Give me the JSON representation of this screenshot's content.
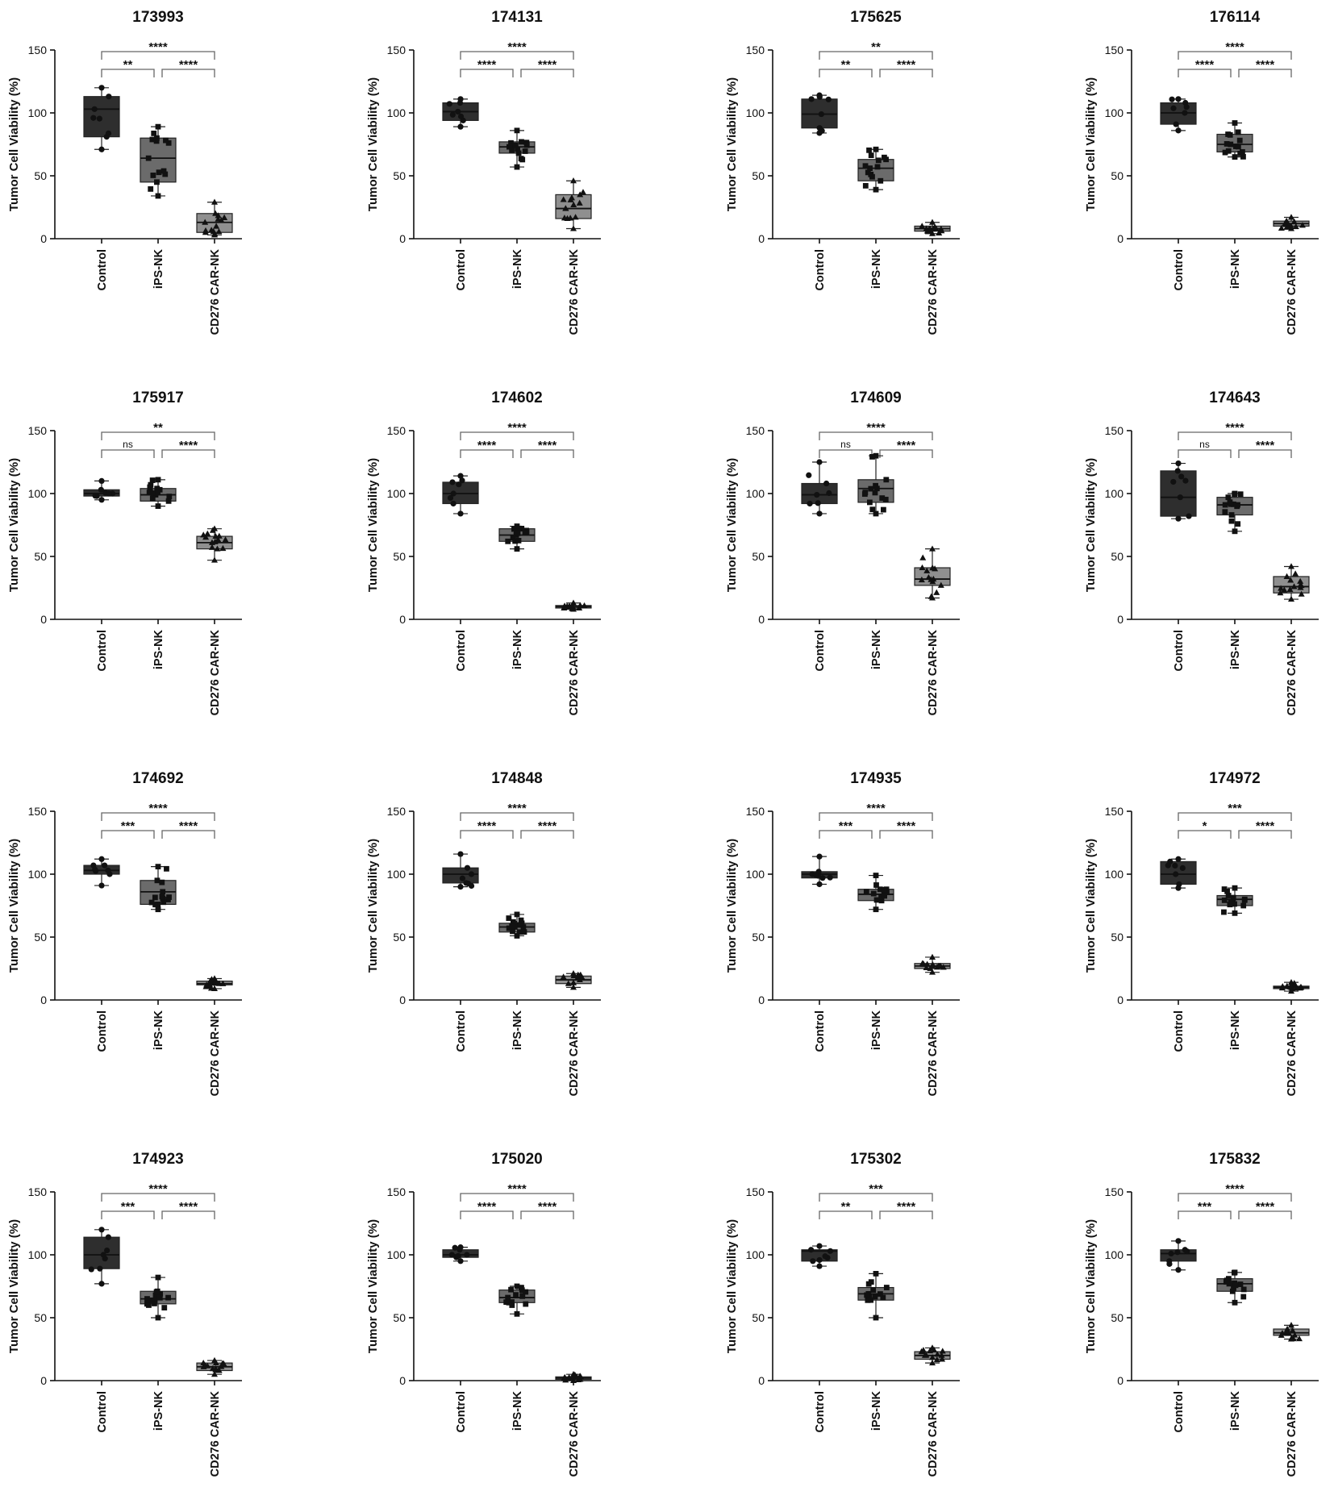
{
  "figure": {
    "categories": [
      "Control",
      "iPS-NK",
      "CD276 CAR-NK"
    ],
    "ylabel": "Tumor Cell Viability (%)",
    "yticks": [
      0,
      50,
      100,
      150
    ],
    "box_colors": [
      "#2e2e2e",
      "#6b6b6b",
      "#8f8f8f"
    ]
  },
  "chart_data": [
    {
      "type": "box",
      "title": "173993",
      "categories": [
        "Control",
        "iPS-NK",
        "CD276 CAR-NK"
      ],
      "ylabel": "Tumor Cell Viability (%)",
      "ylim": [
        0,
        150
      ],
      "boxes": [
        {
          "min": 71,
          "q1": 81,
          "median": 103,
          "q3": 113,
          "max": 120
        },
        {
          "min": 34,
          "q1": 45,
          "median": 64,
          "q3": 80,
          "max": 89
        },
        {
          "min": 3,
          "q1": 5,
          "median": 13,
          "q3": 20,
          "max": 29
        }
      ],
      "comparisons": [
        {
          "from": "Control",
          "to": "iPS-NK",
          "label": "**"
        },
        {
          "from": "iPS-NK",
          "to": "CD276 CAR-NK",
          "label": "****"
        },
        {
          "from": "Control",
          "to": "CD276 CAR-NK",
          "label": "****"
        }
      ]
    },
    {
      "type": "box",
      "title": "174131",
      "categories": [
        "Control",
        "iPS-NK",
        "CD276 CAR-NK"
      ],
      "ylabel": "Tumor Cell Viability (%)",
      "ylim": [
        0,
        150
      ],
      "boxes": [
        {
          "min": 89,
          "q1": 94,
          "median": 101,
          "q3": 108,
          "max": 111
        },
        {
          "min": 57,
          "q1": 68,
          "median": 73,
          "q3": 77,
          "max": 86
        },
        {
          "min": 8,
          "q1": 16,
          "median": 24,
          "q3": 35,
          "max": 46
        }
      ],
      "comparisons": [
        {
          "from": "Control",
          "to": "iPS-NK",
          "label": "****"
        },
        {
          "from": "iPS-NK",
          "to": "CD276 CAR-NK",
          "label": "****"
        },
        {
          "from": "Control",
          "to": "CD276 CAR-NK",
          "label": "****"
        }
      ]
    },
    {
      "type": "box",
      "title": "175625",
      "categories": [
        "Control",
        "iPS-NK",
        "CD276 CAR-NK"
      ],
      "ylabel": "Tumor Cell Viability (%)",
      "ylim": [
        0,
        150
      ],
      "boxes": [
        {
          "min": 84,
          "q1": 88,
          "median": 99,
          "q3": 111,
          "max": 114
        },
        {
          "min": 39,
          "q1": 46,
          "median": 56,
          "q3": 63,
          "max": 71
        },
        {
          "min": 4,
          "q1": 6,
          "median": 8,
          "q3": 10,
          "max": 13
        }
      ],
      "comparisons": [
        {
          "from": "Control",
          "to": "iPS-NK",
          "label": "**"
        },
        {
          "from": "iPS-NK",
          "to": "CD276 CAR-NK",
          "label": "****"
        },
        {
          "from": "Control",
          "to": "CD276 CAR-NK",
          "label": "**"
        }
      ]
    },
    {
      "type": "box",
      "title": "176114",
      "categories": [
        "Control",
        "iPS-NK",
        "CD276 CAR-NK"
      ],
      "ylabel": "Tumor Cell Viability (%)",
      "ylim": [
        0,
        150
      ],
      "boxes": [
        {
          "min": 86,
          "q1": 91,
          "median": 100,
          "q3": 108,
          "max": 111
        },
        {
          "min": 65,
          "q1": 69,
          "median": 75,
          "q3": 83,
          "max": 92
        },
        {
          "min": 8,
          "q1": 10,
          "median": 12,
          "q3": 14,
          "max": 17
        }
      ],
      "comparisons": [
        {
          "from": "Control",
          "to": "iPS-NK",
          "label": "****"
        },
        {
          "from": "iPS-NK",
          "to": "CD276 CAR-NK",
          "label": "****"
        },
        {
          "from": "Control",
          "to": "CD276 CAR-NK",
          "label": "****"
        }
      ]
    },
    {
      "type": "box",
      "title": "175917",
      "categories": [
        "Control",
        "iPS-NK",
        "CD276 CAR-NK"
      ],
      "ylabel": "Tumor Cell Viability (%)",
      "ylim": [
        0,
        150
      ],
      "boxes": [
        {
          "min": 95,
          "q1": 98,
          "median": 100,
          "q3": 103,
          "max": 110
        },
        {
          "min": 90,
          "q1": 94,
          "median": 99,
          "q3": 104,
          "max": 111
        },
        {
          "min": 47,
          "q1": 56,
          "median": 61,
          "q3": 66,
          "max": 72
        }
      ],
      "comparisons": [
        {
          "from": "Control",
          "to": "iPS-NK",
          "label": "ns"
        },
        {
          "from": "iPS-NK",
          "to": "CD276 CAR-NK",
          "label": "****"
        },
        {
          "from": "Control",
          "to": "CD276 CAR-NK",
          "label": "**"
        }
      ]
    },
    {
      "type": "box",
      "title": "174602",
      "categories": [
        "Control",
        "iPS-NK",
        "CD276 CAR-NK"
      ],
      "ylabel": "Tumor Cell Viability (%)",
      "ylim": [
        0,
        150
      ],
      "boxes": [
        {
          "min": 84,
          "q1": 92,
          "median": 100,
          "q3": 109,
          "max": 114
        },
        {
          "min": 56,
          "q1": 62,
          "median": 67,
          "q3": 72,
          "max": 74
        },
        {
          "min": 8,
          "q1": 9,
          "median": 10,
          "q3": 11,
          "max": 13
        }
      ],
      "comparisons": [
        {
          "from": "Control",
          "to": "iPS-NK",
          "label": "****"
        },
        {
          "from": "iPS-NK",
          "to": "CD276 CAR-NK",
          "label": "****"
        },
        {
          "from": "Control",
          "to": "CD276 CAR-NK",
          "label": "****"
        }
      ]
    },
    {
      "type": "box",
      "title": "174609",
      "categories": [
        "Control",
        "iPS-NK",
        "CD276 CAR-NK"
      ],
      "ylabel": "Tumor Cell Viability (%)",
      "ylim": [
        0,
        150
      ],
      "boxes": [
        {
          "min": 84,
          "q1": 92,
          "median": 99,
          "q3": 108,
          "max": 125
        },
        {
          "min": 84,
          "q1": 93,
          "median": 104,
          "q3": 111,
          "max": 130
        },
        {
          "min": 17,
          "q1": 27,
          "median": 32,
          "q3": 41,
          "max": 56
        }
      ],
      "comparisons": [
        {
          "from": "Control",
          "to": "iPS-NK",
          "label": "ns"
        },
        {
          "from": "iPS-NK",
          "to": "CD276 CAR-NK",
          "label": "****"
        },
        {
          "from": "Control",
          "to": "CD276 CAR-NK",
          "label": "****"
        }
      ]
    },
    {
      "type": "box",
      "title": "174643",
      "categories": [
        "Control",
        "iPS-NK",
        "CD276 CAR-NK"
      ],
      "ylabel": "Tumor Cell Viability (%)",
      "ylim": [
        0,
        150
      ],
      "boxes": [
        {
          "min": 80,
          "q1": 82,
          "median": 97,
          "q3": 118,
          "max": 124
        },
        {
          "min": 70,
          "q1": 83,
          "median": 91,
          "q3": 97,
          "max": 100
        },
        {
          "min": 16,
          "q1": 21,
          "median": 26,
          "q3": 34,
          "max": 42
        }
      ],
      "comparisons": [
        {
          "from": "Control",
          "to": "iPS-NK",
          "label": "ns"
        },
        {
          "from": "iPS-NK",
          "to": "CD276 CAR-NK",
          "label": "****"
        },
        {
          "from": "Control",
          "to": "CD276 CAR-NK",
          "label": "****"
        }
      ]
    },
    {
      "type": "box",
      "title": "174692",
      "categories": [
        "Control",
        "iPS-NK",
        "CD276 CAR-NK"
      ],
      "ylabel": "Tumor Cell Viability (%)",
      "ylim": [
        0,
        150
      ],
      "boxes": [
        {
          "min": 91,
          "q1": 100,
          "median": 103,
          "q3": 107,
          "max": 112
        },
        {
          "min": 72,
          "q1": 76,
          "median": 86,
          "q3": 95,
          "max": 106
        },
        {
          "min": 9,
          "q1": 12,
          "median": 13,
          "q3": 15,
          "max": 17
        }
      ],
      "comparisons": [
        {
          "from": "Control",
          "to": "iPS-NK",
          "label": "***"
        },
        {
          "from": "iPS-NK",
          "to": "CD276 CAR-NK",
          "label": "****"
        },
        {
          "from": "Control",
          "to": "CD276 CAR-NK",
          "label": "****"
        }
      ]
    },
    {
      "type": "box",
      "title": "174848",
      "categories": [
        "Control",
        "iPS-NK",
        "CD276 CAR-NK"
      ],
      "ylabel": "Tumor Cell Viability (%)",
      "ylim": [
        0,
        150
      ],
      "boxes": [
        {
          "min": 90,
          "q1": 93,
          "median": 100,
          "q3": 105,
          "max": 116
        },
        {
          "min": 51,
          "q1": 54,
          "median": 58,
          "q3": 61,
          "max": 68
        },
        {
          "min": 10,
          "q1": 13,
          "median": 16,
          "q3": 19,
          "max": 21
        }
      ],
      "comparisons": [
        {
          "from": "Control",
          "to": "iPS-NK",
          "label": "****"
        },
        {
          "from": "iPS-NK",
          "to": "CD276 CAR-NK",
          "label": "****"
        },
        {
          "from": "Control",
          "to": "CD276 CAR-NK",
          "label": "****"
        }
      ]
    },
    {
      "type": "box",
      "title": "174935",
      "categories": [
        "Control",
        "iPS-NK",
        "CD276 CAR-NK"
      ],
      "ylabel": "Tumor Cell Viability (%)",
      "ylim": [
        0,
        150
      ],
      "boxes": [
        {
          "min": 92,
          "q1": 97,
          "median": 100,
          "q3": 102,
          "max": 114
        },
        {
          "min": 72,
          "q1": 79,
          "median": 84,
          "q3": 88,
          "max": 99
        },
        {
          "min": 22,
          "q1": 25,
          "median": 27,
          "q3": 29,
          "max": 34
        }
      ],
      "comparisons": [
        {
          "from": "Control",
          "to": "iPS-NK",
          "label": "***"
        },
        {
          "from": "iPS-NK",
          "to": "CD276 CAR-NK",
          "label": "****"
        },
        {
          "from": "Control",
          "to": "CD276 CAR-NK",
          "label": "****"
        }
      ]
    },
    {
      "type": "box",
      "title": "174972",
      "categories": [
        "Control",
        "iPS-NK",
        "CD276 CAR-NK"
      ],
      "ylabel": "Tumor Cell Viability (%)",
      "ylim": [
        0,
        150
      ],
      "boxes": [
        {
          "min": 89,
          "q1": 92,
          "median": 100,
          "q3": 110,
          "max": 112
        },
        {
          "min": 69,
          "q1": 75,
          "median": 80,
          "q3": 83,
          "max": 89
        },
        {
          "min": 7,
          "q1": 9,
          "median": 10,
          "q3": 11,
          "max": 14
        }
      ],
      "comparisons": [
        {
          "from": "Control",
          "to": "iPS-NK",
          "label": "*"
        },
        {
          "from": "iPS-NK",
          "to": "CD276 CAR-NK",
          "label": "****"
        },
        {
          "from": "Control",
          "to": "CD276 CAR-NK",
          "label": "***"
        }
      ]
    },
    {
      "type": "box",
      "title": "174923",
      "categories": [
        "Control",
        "iPS-NK",
        "CD276 CAR-NK"
      ],
      "ylabel": "Tumor Cell Viability (%)",
      "ylim": [
        0,
        150
      ],
      "boxes": [
        {
          "min": 77,
          "q1": 89,
          "median": 100,
          "q3": 114,
          "max": 120
        },
        {
          "min": 50,
          "q1": 61,
          "median": 65,
          "q3": 71,
          "max": 82
        },
        {
          "min": 5,
          "q1": 8,
          "median": 11,
          "q3": 14,
          "max": 16
        }
      ],
      "comparisons": [
        {
          "from": "Control",
          "to": "iPS-NK",
          "label": "***"
        },
        {
          "from": "iPS-NK",
          "to": "CD276 CAR-NK",
          "label": "****"
        },
        {
          "from": "Control",
          "to": "CD276 CAR-NK",
          "label": "****"
        }
      ]
    },
    {
      "type": "box",
      "title": "175020",
      "categories": [
        "Control",
        "iPS-NK",
        "CD276 CAR-NK"
      ],
      "ylabel": "Tumor Cell Viability (%)",
      "ylim": [
        0,
        150
      ],
      "boxes": [
        {
          "min": 95,
          "q1": 98,
          "median": 100,
          "q3": 104,
          "max": 106
        },
        {
          "min": 53,
          "q1": 62,
          "median": 66,
          "q3": 72,
          "max": 75
        },
        {
          "min": 0,
          "q1": 1,
          "median": 2,
          "q3": 3,
          "max": 5
        }
      ],
      "comparisons": [
        {
          "from": "Control",
          "to": "iPS-NK",
          "label": "****"
        },
        {
          "from": "iPS-NK",
          "to": "CD276 CAR-NK",
          "label": "****"
        },
        {
          "from": "Control",
          "to": "CD276 CAR-NK",
          "label": "****"
        }
      ]
    },
    {
      "type": "box",
      "title": "175302",
      "categories": [
        "Control",
        "iPS-NK",
        "CD276 CAR-NK"
      ],
      "ylabel": "Tumor Cell Viability (%)",
      "ylim": [
        0,
        150
      ],
      "boxes": [
        {
          "min": 91,
          "q1": 95,
          "median": 103,
          "q3": 104,
          "max": 107
        },
        {
          "min": 50,
          "q1": 64,
          "median": 69,
          "q3": 74,
          "max": 85
        },
        {
          "min": 14,
          "q1": 17,
          "median": 20,
          "q3": 23,
          "max": 26
        }
      ],
      "comparisons": [
        {
          "from": "Control",
          "to": "iPS-NK",
          "label": "**"
        },
        {
          "from": "iPS-NK",
          "to": "CD276 CAR-NK",
          "label": "****"
        },
        {
          "from": "Control",
          "to": "CD276 CAR-NK",
          "label": "***"
        }
      ]
    },
    {
      "type": "box",
      "title": "175832",
      "categories": [
        "Control",
        "iPS-NK",
        "CD276 CAR-NK"
      ],
      "ylabel": "Tumor Cell Viability (%)",
      "ylim": [
        0,
        150
      ],
      "boxes": [
        {
          "min": 88,
          "q1": 95,
          "median": 101,
          "q3": 104,
          "max": 111
        },
        {
          "min": 62,
          "q1": 71,
          "median": 77,
          "q3": 81,
          "max": 86
        },
        {
          "min": 33,
          "q1": 36,
          "median": 38,
          "q3": 41,
          "max": 44
        }
      ],
      "comparisons": [
        {
          "from": "Control",
          "to": "iPS-NK",
          "label": "***"
        },
        {
          "from": "iPS-NK",
          "to": "CD276 CAR-NK",
          "label": "****"
        },
        {
          "from": "Control",
          "to": "CD276 CAR-NK",
          "label": "****"
        }
      ]
    }
  ]
}
